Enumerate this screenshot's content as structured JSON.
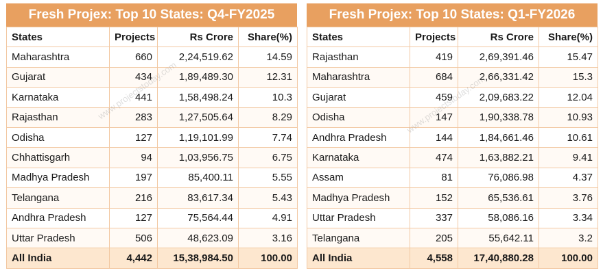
{
  "chart_data": [
    {
      "type": "table",
      "title": "Fresh Projex: Top 10 States: Q4-FY2025",
      "columns": [
        "States",
        "Projects",
        "Rs Crore",
        "Share(%)"
      ],
      "rows": [
        [
          "Maharashtra",
          "660",
          "2,24,519.62",
          "14.59"
        ],
        [
          "Gujarat",
          "434",
          "1,89,489.30",
          "12.31"
        ],
        [
          "Karnataka",
          "441",
          "1,58,498.24",
          "10.3"
        ],
        [
          "Rajasthan",
          "283",
          "1,27,505.64",
          "8.29"
        ],
        [
          "Odisha",
          "127",
          "1,19,101.99",
          "7.74"
        ],
        [
          "Chhattisgarh",
          "94",
          "1,03,956.75",
          "6.75"
        ],
        [
          "Madhya Pradesh",
          "197",
          "85,400.11",
          "5.55"
        ],
        [
          "Telangana",
          "216",
          "83,617.34",
          "5.43"
        ],
        [
          "Andhra Pradesh",
          "127",
          "75,564.44",
          "4.91"
        ],
        [
          "Uttar Pradesh",
          "506",
          "48,623.09",
          "3.16"
        ]
      ],
      "total": [
        "All India",
        "4,442",
        "15,38,984.50",
        "100.00"
      ]
    },
    {
      "type": "table",
      "title": "Fresh Projex: Top 10 States: Q1-FY2026",
      "columns": [
        "States",
        "Projects",
        "Rs Crore",
        "Share(%)"
      ],
      "rows": [
        [
          "Rajasthan",
          "419",
          "2,69,391.46",
          "15.47"
        ],
        [
          "Maharashtra",
          "684",
          "2,66,331.42",
          "15.3"
        ],
        [
          "Gujarat",
          "459",
          "2,09,683.22",
          "12.04"
        ],
        [
          "Odisha",
          "147",
          "1,90,338.78",
          "10.93"
        ],
        [
          "Andhra Pradesh",
          "144",
          "1,84,661.46",
          "10.61"
        ],
        [
          "Karnataka",
          "474",
          "1,63,882.21",
          "9.41"
        ],
        [
          "Assam",
          "81",
          "76,086.98",
          "4.37"
        ],
        [
          "Madhya Pradesh",
          "152",
          "65,536.61",
          "3.76"
        ],
        [
          "Uttar Pradesh",
          "337",
          "58,086.16",
          "3.34"
        ],
        [
          "Telangana",
          "205",
          "55,642.11",
          "3.2"
        ]
      ],
      "total": [
        "All India",
        "4,558",
        "17,40,880.28",
        "100.00"
      ]
    }
  ],
  "watermark": "www.projectstoday.com",
  "colors": {
    "header_bg": "#e8a060",
    "header_text": "#ffffff",
    "grid": "#f2c8a2",
    "total_bg": "#fde7cf"
  }
}
